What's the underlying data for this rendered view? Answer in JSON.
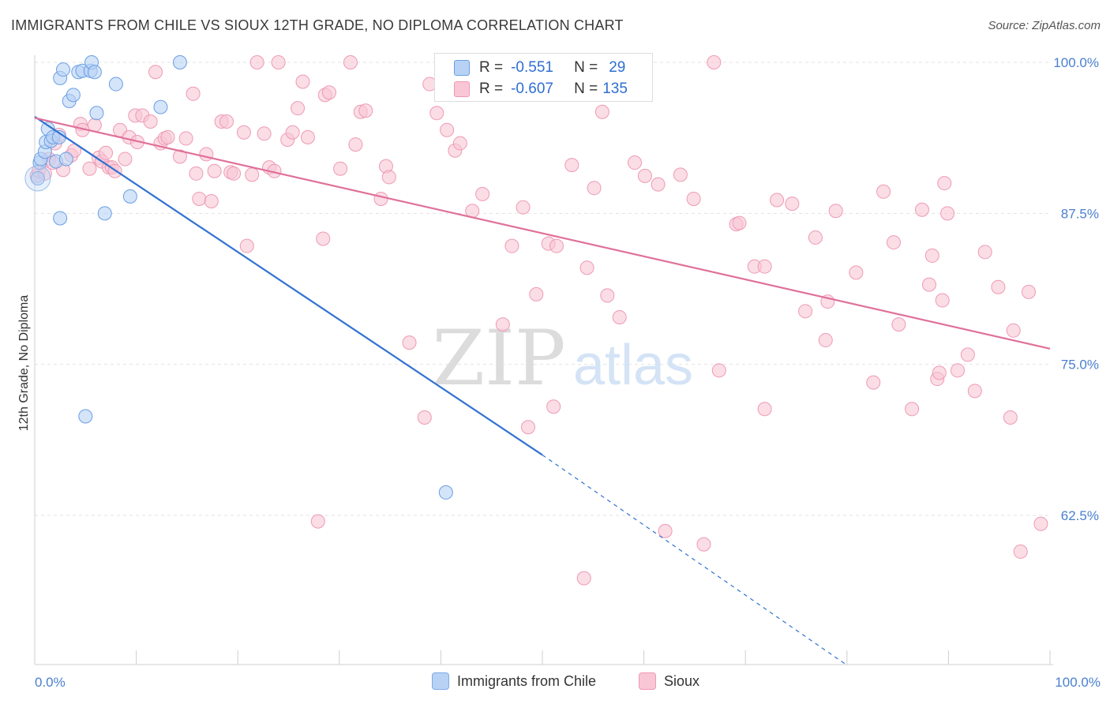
{
  "header": {
    "title": "IMMIGRANTS FROM CHILE VS SIOUX 12TH GRADE, NO DIPLOMA CORRELATION CHART",
    "source": "Source: ZipAtlas.com"
  },
  "watermark": {
    "zip": "ZIP",
    "atlas": "atlas"
  },
  "stats_legend": [
    {
      "r_label": "R =",
      "r_value": "-0.551",
      "n_label": "N =",
      "n_value": "29",
      "swatch_color": "#a9c8f2",
      "swatch_border": "#6a9fe0"
    },
    {
      "r_label": "R =",
      "r_value": "-0.607",
      "n_label": "N =",
      "n_value": "135",
      "swatch_color": "#f7bccd",
      "swatch_border": "#ea88a6"
    }
  ],
  "bottom_legend": [
    {
      "label": "Immigrants from Chile",
      "color": "#b8d2f5",
      "border": "#7eaae6"
    },
    {
      "label": "Sioux",
      "color": "#f9c6d6",
      "border": "#ee9ab4"
    }
  ],
  "chart_data": {
    "type": "scatter",
    "title": "IMMIGRANTS FROM CHILE VS SIOUX 12TH GRADE, NO DIPLOMA CORRELATION CHART",
    "xlabel": "",
    "ylabel": "12th Grade, No Diploma",
    "xlim": [
      0,
      100
    ],
    "ylim": [
      50,
      100.5
    ],
    "x_tick_labels": [
      "0.0%",
      "100.0%"
    ],
    "y_ticks": [
      100,
      87.5,
      75,
      62.5
    ],
    "y_tick_labels": [
      "100.0%",
      "87.5%",
      "75.0%",
      "62.5%"
    ],
    "grid": true,
    "series": [
      {
        "name": "Immigrants from Chile",
        "color": "#6b9fe3",
        "fill": "#b8d2f5",
        "line_color": "#2f72d0",
        "trend": {
          "x0": 0,
          "y0": 95.5,
          "x1": 50,
          "y1": 67.5,
          "dashed_to_x": 80,
          "dashed_to_y": 50.1
        },
        "points": [
          [
            0.3,
            90.4
          ],
          [
            0.5,
            91.7
          ],
          [
            0.6,
            92.0
          ],
          [
            1.0,
            92.6
          ],
          [
            1.1,
            93.4
          ],
          [
            1.3,
            94.5
          ],
          [
            1.6,
            93.5
          ],
          [
            1.8,
            93.8
          ],
          [
            2.1,
            91.8
          ],
          [
            2.4,
            93.8
          ],
          [
            2.5,
            87.1
          ],
          [
            2.5,
            98.7
          ],
          [
            2.8,
            99.4
          ],
          [
            3.1,
            92.0
          ],
          [
            3.4,
            96.8
          ],
          [
            3.8,
            97.3
          ],
          [
            4.3,
            99.2
          ],
          [
            4.7,
            99.3
          ],
          [
            5.0,
            70.7
          ],
          [
            5.5,
            99.3
          ],
          [
            5.6,
            100.0
          ],
          [
            5.9,
            99.2
          ],
          [
            6.1,
            95.8
          ],
          [
            6.9,
            87.5
          ],
          [
            8.0,
            98.2
          ],
          [
            9.4,
            88.9
          ],
          [
            12.4,
            96.3
          ],
          [
            14.3,
            100.0
          ],
          [
            40.5,
            64.4
          ]
        ]
      },
      {
        "name": "Sioux",
        "color": "#ee9ab4",
        "fill": "#f9c6d6",
        "line_color": "#e0709a",
        "trend": {
          "x0": 0,
          "y0": 95.4,
          "x1": 100,
          "y1": 76.3
        },
        "points": [
          [
            0.2,
            90.6
          ],
          [
            0.4,
            91.0
          ],
          [
            1.0,
            90.8
          ],
          [
            1.4,
            92.0
          ],
          [
            1.8,
            91.7
          ],
          [
            2.0,
            93.3
          ],
          [
            2.4,
            94.0
          ],
          [
            2.8,
            91.1
          ],
          [
            3.6,
            92.3
          ],
          [
            3.9,
            92.7
          ],
          [
            4.5,
            94.9
          ],
          [
            4.7,
            94.4
          ],
          [
            5.4,
            91.2
          ],
          [
            5.9,
            94.8
          ],
          [
            6.3,
            92.1
          ],
          [
            6.6,
            91.8
          ],
          [
            7.0,
            92.5
          ],
          [
            7.3,
            91.3
          ],
          [
            7.6,
            91.3
          ],
          [
            7.9,
            91.0
          ],
          [
            8.4,
            94.4
          ],
          [
            8.9,
            92.0
          ],
          [
            9.3,
            93.8
          ],
          [
            9.9,
            95.6
          ],
          [
            10.1,
            93.4
          ],
          [
            10.6,
            95.6
          ],
          [
            11.4,
            95.1
          ],
          [
            11.9,
            99.2
          ],
          [
            12.4,
            93.3
          ],
          [
            12.8,
            93.7
          ],
          [
            13.1,
            93.8
          ],
          [
            14.3,
            92.2
          ],
          [
            14.9,
            93.7
          ],
          [
            15.6,
            97.4
          ],
          [
            15.9,
            90.8
          ],
          [
            16.2,
            88.7
          ],
          [
            16.9,
            92.4
          ],
          [
            17.4,
            88.5
          ],
          [
            17.7,
            91.0
          ],
          [
            18.4,
            95.1
          ],
          [
            18.9,
            95.1
          ],
          [
            19.3,
            90.9
          ],
          [
            19.6,
            90.8
          ],
          [
            20.6,
            94.2
          ],
          [
            20.9,
            84.8
          ],
          [
            21.4,
            90.7
          ],
          [
            21.9,
            100.0
          ],
          [
            22.6,
            94.1
          ],
          [
            23.1,
            91.3
          ],
          [
            23.6,
            91.0
          ],
          [
            24.0,
            100.0
          ],
          [
            24.9,
            93.6
          ],
          [
            25.4,
            94.2
          ],
          [
            25.9,
            96.2
          ],
          [
            26.4,
            98.4
          ],
          [
            26.9,
            93.8
          ],
          [
            27.9,
            62.0
          ],
          [
            28.4,
            85.4
          ],
          [
            28.6,
            97.3
          ],
          [
            29.0,
            97.5
          ],
          [
            30.1,
            91.2
          ],
          [
            31.1,
            100.0
          ],
          [
            31.6,
            93.2
          ],
          [
            32.1,
            95.9
          ],
          [
            32.6,
            96.0
          ],
          [
            34.1,
            88.7
          ],
          [
            34.6,
            91.4
          ],
          [
            34.9,
            90.5
          ],
          [
            36.9,
            76.8
          ],
          [
            38.4,
            70.6
          ],
          [
            38.9,
            98.2
          ],
          [
            39.6,
            95.8
          ],
          [
            40.6,
            94.4
          ],
          [
            41.4,
            92.7
          ],
          [
            41.9,
            93.3
          ],
          [
            43.1,
            87.7
          ],
          [
            44.1,
            89.1
          ],
          [
            46.1,
            78.3
          ],
          [
            47.0,
            84.8
          ],
          [
            48.1,
            88.0
          ],
          [
            48.6,
            69.8
          ],
          [
            49.4,
            80.8
          ],
          [
            50.6,
            85.0
          ],
          [
            51.1,
            71.5
          ],
          [
            51.4,
            84.8
          ],
          [
            52.9,
            91.5
          ],
          [
            54.1,
            57.3
          ],
          [
            54.4,
            83.0
          ],
          [
            55.1,
            89.6
          ],
          [
            55.9,
            95.9
          ],
          [
            56.4,
            80.7
          ],
          [
            57.6,
            78.9
          ],
          [
            59.1,
            91.7
          ],
          [
            60.1,
            90.6
          ],
          [
            61.4,
            89.9
          ],
          [
            62.1,
            61.2
          ],
          [
            63.6,
            90.7
          ],
          [
            64.9,
            88.7
          ],
          [
            65.9,
            60.1
          ],
          [
            66.9,
            100.0
          ],
          [
            67.4,
            74.5
          ],
          [
            69.1,
            86.6
          ],
          [
            69.4,
            86.7
          ],
          [
            70.9,
            83.1
          ],
          [
            71.9,
            83.1
          ],
          [
            71.9,
            71.3
          ],
          [
            73.1,
            88.6
          ],
          [
            74.6,
            88.3
          ],
          [
            75.9,
            79.4
          ],
          [
            76.9,
            85.5
          ],
          [
            77.9,
            77.0
          ],
          [
            78.1,
            80.2
          ],
          [
            78.9,
            87.7
          ],
          [
            80.9,
            82.6
          ],
          [
            82.6,
            73.5
          ],
          [
            83.6,
            89.3
          ],
          [
            84.6,
            85.1
          ],
          [
            85.1,
            78.3
          ],
          [
            86.4,
            71.3
          ],
          [
            87.4,
            87.8
          ],
          [
            88.1,
            81.6
          ],
          [
            88.4,
            84.0
          ],
          [
            88.9,
            73.8
          ],
          [
            89.1,
            74.3
          ],
          [
            89.4,
            80.3
          ],
          [
            89.6,
            90.0
          ],
          [
            89.9,
            87.5
          ],
          [
            90.9,
            74.5
          ],
          [
            91.9,
            75.8
          ],
          [
            92.6,
            72.8
          ],
          [
            93.6,
            84.3
          ],
          [
            94.9,
            81.4
          ],
          [
            96.1,
            70.6
          ],
          [
            96.4,
            77.8
          ],
          [
            97.1,
            59.5
          ],
          [
            97.9,
            81.0
          ],
          [
            99.1,
            61.8
          ]
        ]
      }
    ]
  }
}
